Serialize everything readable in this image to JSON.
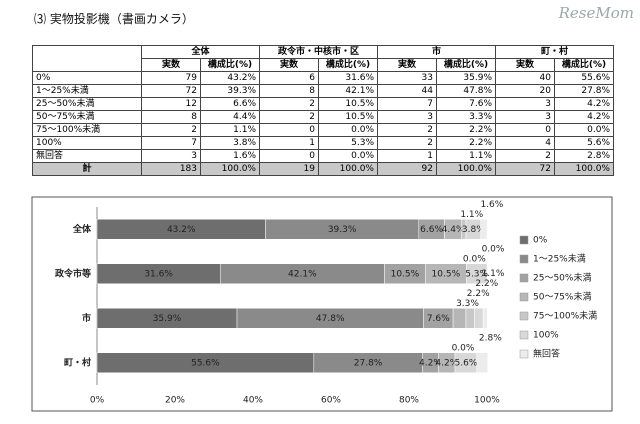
{
  "header": {
    "title": "⑶ 実物投影機（書画カメラ）",
    "logo": "ReseMom"
  },
  "table": {
    "groups": [
      "全体",
      "政令市・中核市・区",
      "市",
      "町・村"
    ],
    "subheaders": [
      "実数",
      "構成比(%)",
      "実数",
      "構成比(%)",
      "実数",
      "構成比(%)",
      "実数",
      "構成比(%)"
    ],
    "rows": [
      [
        "0%",
        "79",
        "43.2%",
        "6",
        "31.6%",
        "33",
        "35.9%",
        "40",
        "55.6%"
      ],
      [
        "1〜25%未満",
        "72",
        "39.3%",
        "8",
        "42.1%",
        "44",
        "47.8%",
        "20",
        "27.8%"
      ],
      [
        "25〜50%未満",
        "12",
        "6.6%",
        "2",
        "10.5%",
        "7",
        "7.6%",
        "3",
        "4.2%"
      ],
      [
        "50〜75%未満",
        "8",
        "4.4%",
        "2",
        "10.5%",
        "3",
        "3.3%",
        "3",
        "4.2%"
      ],
      [
        "75〜100%未満",
        "2",
        "1.1%",
        "0",
        "0.0%",
        "2",
        "2.2%",
        "0",
        "0.0%"
      ],
      [
        "100%",
        "7",
        "3.8%",
        "1",
        "5.3%",
        "2",
        "2.2%",
        "4",
        "5.6%"
      ],
      [
        "無回答",
        "3",
        "1.6%",
        "0",
        "0.0%",
        "1",
        "1.1%",
        "2",
        "2.8%"
      ],
      [
        "計",
        "183",
        "100.0%",
        "19",
        "100.0%",
        "92",
        "100.0%",
        "72",
        "100.0%"
      ]
    ]
  },
  "chart_data": {
    "type": "bar",
    "orientation": "horizontal",
    "stacked": true,
    "categories": [
      "全体",
      "政令市等",
      "市",
      "町・村"
    ],
    "xlim": [
      0,
      100
    ],
    "xticks": [
      {
        "value": 0,
        "label": "0%"
      },
      {
        "value": 20,
        "label": "20%"
      },
      {
        "value": 40,
        "label": "40%"
      },
      {
        "value": 60,
        "label": "60%"
      },
      {
        "value": 80,
        "label": "80%"
      },
      {
        "value": 100,
        "label": "100%"
      }
    ],
    "grid": false,
    "legend": "right",
    "series": [
      {
        "name": "0%",
        "color": "#6e6e6e",
        "values": [
          43.2,
          31.6,
          35.9,
          55.6
        ],
        "value_labels": [
          "43.2%",
          "31.6%",
          "35.9%",
          "55.6%"
        ]
      },
      {
        "name": "1〜25%未満",
        "color": "#8a8a8a",
        "values": [
          39.3,
          42.1,
          47.8,
          27.8
        ],
        "value_labels": [
          "39.3%",
          "42.1%",
          "47.8%",
          "27.8%"
        ]
      },
      {
        "name": "25〜50%未満",
        "color": "#a2a2a2",
        "values": [
          6.6,
          10.5,
          7.6,
          4.2
        ],
        "value_labels": [
          "6.6%",
          "10.5%",
          "7.6%",
          "4.2%"
        ]
      },
      {
        "name": "50〜75%未満",
        "color": "#b6b6b6",
        "values": [
          4.4,
          10.5,
          3.3,
          4.2
        ],
        "value_labels": [
          "4.4%",
          "10.5%",
          "3.3%",
          "4.2%"
        ]
      },
      {
        "name": "75〜100%未満",
        "color": "#c8c8c8",
        "values": [
          1.1,
          0.0,
          2.2,
          0.0
        ],
        "value_labels": [
          "1.1%",
          "0.0%",
          "2.2%",
          "0.0%"
        ]
      },
      {
        "name": "100%",
        "color": "#d8d8d8",
        "values": [
          3.8,
          5.3,
          2.2,
          5.6
        ],
        "value_labels": [
          "3.8%",
          "5.3%",
          "2.2%",
          "5.6%"
        ]
      },
      {
        "name": "無回答",
        "color": "#ececec",
        "values": [
          1.6,
          0.0,
          1.1,
          2.8
        ],
        "value_labels": [
          "1.6%",
          "0.0%",
          "1.1%",
          "2.8%"
        ]
      }
    ]
  }
}
